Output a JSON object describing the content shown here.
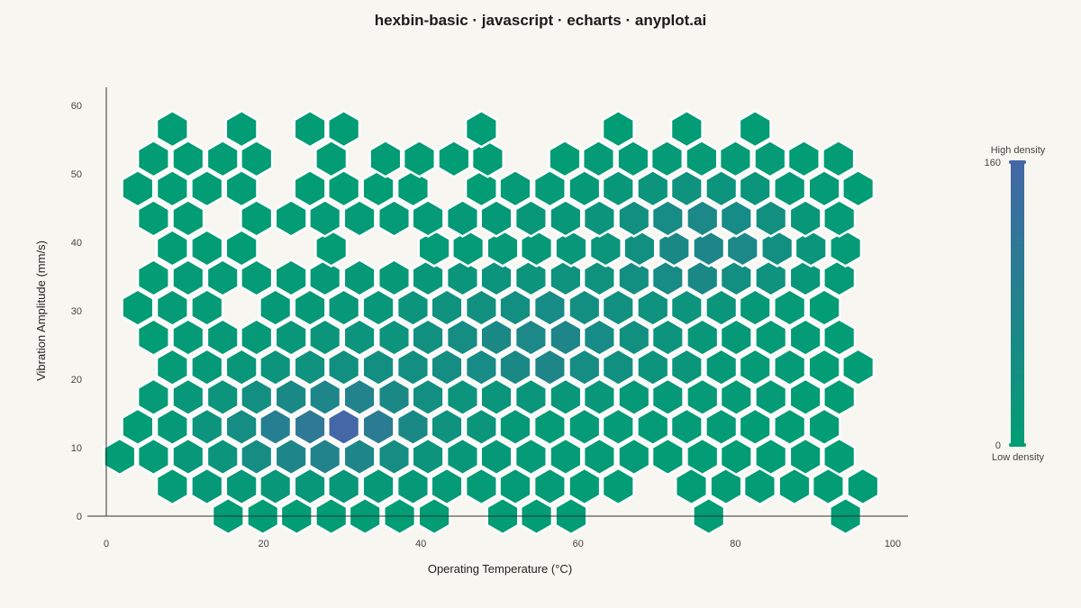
{
  "chart_data": {
    "type": "heatmap",
    "subtype": "hexbin",
    "title": "hexbin-basic · javascript · echarts · anyplot.ai",
    "xlabel": "Operating Temperature (°C)",
    "ylabel": "Vibration Amplitude (mm/s)",
    "xlim": [
      0,
      102
    ],
    "ylim": [
      -2,
      63
    ],
    "xticks": [
      0,
      20,
      40,
      60,
      80,
      100
    ],
    "yticks": [
      0,
      10,
      20,
      30,
      40,
      50,
      60
    ],
    "grid": false,
    "visual_map": {
      "min": 0,
      "max": 160,
      "high_label": "High density",
      "low_label": "Low density",
      "color_low": "#009e73",
      "color_high": "#4467a6"
    },
    "hex_rows": [
      {
        "y": 0,
        "cells": [
          [
            15.5,
            5
          ],
          [
            19.9,
            5
          ],
          [
            24.2,
            5
          ],
          [
            28.6,
            5
          ],
          [
            32.9,
            5
          ],
          [
            37.3,
            5
          ],
          [
            41.7,
            5
          ],
          [
            50.4,
            5
          ],
          [
            54.7,
            5
          ],
          [
            59.1,
            5
          ],
          [
            76.6,
            5
          ],
          [
            94.0,
            5
          ]
        ]
      },
      {
        "y": 4.35,
        "cells": [
          [
            8.4,
            10
          ],
          [
            12.8,
            15
          ],
          [
            17.2,
            15
          ],
          [
            21.5,
            20
          ],
          [
            25.9,
            20
          ],
          [
            30.2,
            20
          ],
          [
            34.6,
            15
          ],
          [
            39.0,
            15
          ],
          [
            43.3,
            10
          ],
          [
            47.7,
            10
          ],
          [
            52.0,
            10
          ],
          [
            56.4,
            10
          ],
          [
            60.8,
            5
          ],
          [
            65.1,
            5
          ],
          [
            74.4,
            5
          ],
          [
            78.8,
            5
          ],
          [
            83.1,
            5
          ],
          [
            87.5,
            5
          ],
          [
            91.8,
            5
          ],
          [
            96.2,
            5
          ]
        ]
      },
      {
        "y": 8.7,
        "cells": [
          [
            1.7,
            5
          ],
          [
            6.0,
            10
          ],
          [
            10.4,
            20
          ],
          [
            14.8,
            30
          ],
          [
            19.1,
            50
          ],
          [
            23.5,
            70
          ],
          [
            27.8,
            80
          ],
          [
            32.2,
            70
          ],
          [
            36.6,
            50
          ],
          [
            40.9,
            30
          ],
          [
            45.3,
            20
          ],
          [
            49.6,
            15
          ],
          [
            54.0,
            10
          ],
          [
            58.4,
            10
          ],
          [
            62.7,
            10
          ],
          [
            67.1,
            10
          ],
          [
            71.4,
            5
          ],
          [
            75.8,
            5
          ],
          [
            80.1,
            5
          ],
          [
            84.5,
            5
          ],
          [
            88.9,
            5
          ],
          [
            93.2,
            5
          ]
        ]
      },
      {
        "y": 13.05,
        "cells": [
          [
            4.0,
            5
          ],
          [
            8.4,
            15
          ],
          [
            12.8,
            30
          ],
          [
            17.2,
            50
          ],
          [
            21.5,
            90
          ],
          [
            25.9,
            110
          ],
          [
            30.2,
            160
          ],
          [
            34.6,
            100
          ],
          [
            39.0,
            60
          ],
          [
            43.3,
            35
          ],
          [
            47.7,
            25
          ],
          [
            52.0,
            15
          ],
          [
            56.4,
            10
          ],
          [
            60.8,
            10
          ],
          [
            65.1,
            10
          ],
          [
            69.5,
            10
          ],
          [
            73.8,
            10
          ],
          [
            78.2,
            10
          ],
          [
            82.5,
            5
          ],
          [
            86.9,
            5
          ],
          [
            91.3,
            5
          ]
        ]
      },
      {
        "y": 17.4,
        "cells": [
          [
            6.0,
            10
          ],
          [
            10.4,
            20
          ],
          [
            14.8,
            30
          ],
          [
            19.1,
            45
          ],
          [
            23.5,
            60
          ],
          [
            27.8,
            70
          ],
          [
            32.2,
            80
          ],
          [
            36.6,
            60
          ],
          [
            40.9,
            45
          ],
          [
            45.3,
            30
          ],
          [
            49.6,
            25
          ],
          [
            54.0,
            25
          ],
          [
            58.4,
            20
          ],
          [
            62.7,
            20
          ],
          [
            67.1,
            15
          ],
          [
            71.4,
            15
          ],
          [
            75.8,
            10
          ],
          [
            80.1,
            10
          ],
          [
            84.5,
            10
          ],
          [
            88.9,
            5
          ],
          [
            93.2,
            5
          ]
        ]
      },
      {
        "y": 21.75,
        "cells": [
          [
            8.4,
            10
          ],
          [
            12.8,
            15
          ],
          [
            17.2,
            20
          ],
          [
            21.5,
            30
          ],
          [
            25.9,
            35
          ],
          [
            30.2,
            40
          ],
          [
            34.6,
            45
          ],
          [
            39.0,
            45
          ],
          [
            43.3,
            50
          ],
          [
            47.7,
            55
          ],
          [
            52.0,
            60
          ],
          [
            56.4,
            70
          ],
          [
            60.8,
            50
          ],
          [
            65.1,
            40
          ],
          [
            69.5,
            30
          ],
          [
            73.8,
            25
          ],
          [
            78.2,
            15
          ],
          [
            82.5,
            10
          ],
          [
            86.9,
            10
          ],
          [
            91.3,
            5
          ],
          [
            95.6,
            5
          ]
        ]
      },
      {
        "y": 26.1,
        "cells": [
          [
            6.0,
            5
          ],
          [
            10.4,
            10
          ],
          [
            14.8,
            15
          ],
          [
            19.1,
            15
          ],
          [
            23.5,
            20
          ],
          [
            27.8,
            25
          ],
          [
            32.2,
            30
          ],
          [
            36.6,
            30
          ],
          [
            40.9,
            40
          ],
          [
            45.3,
            50
          ],
          [
            49.6,
            60
          ],
          [
            54.0,
            65
          ],
          [
            58.4,
            70
          ],
          [
            62.7,
            55
          ],
          [
            67.1,
            40
          ],
          [
            71.4,
            30
          ],
          [
            75.8,
            20
          ],
          [
            80.1,
            15
          ],
          [
            84.5,
            10
          ],
          [
            88.9,
            10
          ],
          [
            93.2,
            5
          ]
        ]
      },
      {
        "y": 30.45,
        "cells": [
          [
            4.0,
            5
          ],
          [
            8.4,
            10
          ],
          [
            12.8,
            10
          ],
          [
            21.5,
            15
          ],
          [
            25.9,
            15
          ],
          [
            30.2,
            20
          ],
          [
            34.6,
            20
          ],
          [
            39.0,
            30
          ],
          [
            43.3,
            35
          ],
          [
            47.7,
            40
          ],
          [
            52.0,
            45
          ],
          [
            56.4,
            55
          ],
          [
            60.8,
            45
          ],
          [
            65.1,
            40
          ],
          [
            69.5,
            35
          ],
          [
            73.8,
            30
          ],
          [
            78.2,
            25
          ],
          [
            82.5,
            15
          ],
          [
            86.9,
            10
          ],
          [
            91.3,
            5
          ]
        ]
      },
      {
        "y": 34.8,
        "cells": [
          [
            6.0,
            5
          ],
          [
            10.4,
            10
          ],
          [
            14.8,
            10
          ],
          [
            19.1,
            10
          ],
          [
            23.5,
            10
          ],
          [
            27.8,
            15
          ],
          [
            32.2,
            15
          ],
          [
            36.6,
            15
          ],
          [
            40.9,
            20
          ],
          [
            45.3,
            25
          ],
          [
            49.6,
            30
          ],
          [
            54.0,
            30
          ],
          [
            58.4,
            35
          ],
          [
            62.7,
            35
          ],
          [
            67.1,
            45
          ],
          [
            71.4,
            55
          ],
          [
            75.8,
            60
          ],
          [
            80.1,
            45
          ],
          [
            84.5,
            35
          ],
          [
            88.9,
            20
          ],
          [
            93.2,
            10
          ]
        ]
      },
      {
        "y": 39.15,
        "cells": [
          [
            8.4,
            5
          ],
          [
            12.8,
            5
          ],
          [
            17.2,
            5
          ],
          [
            28.6,
            5
          ],
          [
            41.7,
            10
          ],
          [
            46.0,
            10
          ],
          [
            50.4,
            15
          ],
          [
            54.7,
            15
          ],
          [
            59.1,
            20
          ],
          [
            63.5,
            25
          ],
          [
            67.8,
            40
          ],
          [
            72.2,
            60
          ],
          [
            76.6,
            70
          ],
          [
            80.9,
            65
          ],
          [
            85.3,
            45
          ],
          [
            89.6,
            25
          ],
          [
            94.0,
            10
          ]
        ]
      },
      {
        "y": 43.5,
        "cells": [
          [
            6.0,
            5
          ],
          [
            10.4,
            5
          ],
          [
            19.1,
            5
          ],
          [
            23.5,
            5
          ],
          [
            27.8,
            10
          ],
          [
            32.2,
            10
          ],
          [
            36.6,
            10
          ],
          [
            40.9,
            10
          ],
          [
            45.3,
            15
          ],
          [
            49.6,
            15
          ],
          [
            54.0,
            20
          ],
          [
            58.4,
            20
          ],
          [
            62.7,
            30
          ],
          [
            67.1,
            40
          ],
          [
            71.4,
            55
          ],
          [
            75.8,
            65
          ],
          [
            80.1,
            55
          ],
          [
            84.5,
            40
          ],
          [
            88.9,
            20
          ],
          [
            93.2,
            10
          ]
        ]
      },
      {
        "y": 47.85,
        "cells": [
          [
            4.0,
            5
          ],
          [
            8.4,
            5
          ],
          [
            12.8,
            5
          ],
          [
            17.2,
            5
          ],
          [
            25.9,
            5
          ],
          [
            30.2,
            5
          ],
          [
            34.6,
            5
          ],
          [
            39.0,
            5
          ],
          [
            47.7,
            5
          ],
          [
            52.0,
            10
          ],
          [
            56.4,
            10
          ],
          [
            60.8,
            15
          ],
          [
            65.1,
            20
          ],
          [
            69.5,
            30
          ],
          [
            73.8,
            35
          ],
          [
            78.2,
            30
          ],
          [
            82.5,
            25
          ],
          [
            86.9,
            15
          ],
          [
            91.3,
            10
          ],
          [
            95.6,
            5
          ]
        ]
      },
      {
        "y": 52.2,
        "cells": [
          [
            6.0,
            5
          ],
          [
            10.4,
            5
          ],
          [
            14.8,
            5
          ],
          [
            19.1,
            5
          ],
          [
            28.6,
            5
          ],
          [
            35.5,
            5
          ],
          [
            39.8,
            5
          ],
          [
            44.2,
            5
          ],
          [
            48.5,
            5
          ],
          [
            58.3,
            5
          ],
          [
            62.6,
            10
          ],
          [
            67.0,
            10
          ],
          [
            71.3,
            10
          ],
          [
            75.7,
            10
          ],
          [
            80.0,
            10
          ],
          [
            84.4,
            10
          ],
          [
            88.7,
            5
          ],
          [
            93.1,
            5
          ]
        ]
      },
      {
        "y": 56.55,
        "cells": [
          [
            8.4,
            5
          ],
          [
            17.2,
            5
          ],
          [
            25.9,
            5
          ],
          [
            30.2,
            5
          ],
          [
            47.7,
            5
          ],
          [
            65.1,
            5
          ],
          [
            73.8,
            5
          ],
          [
            82.5,
            5
          ]
        ]
      }
    ]
  }
}
